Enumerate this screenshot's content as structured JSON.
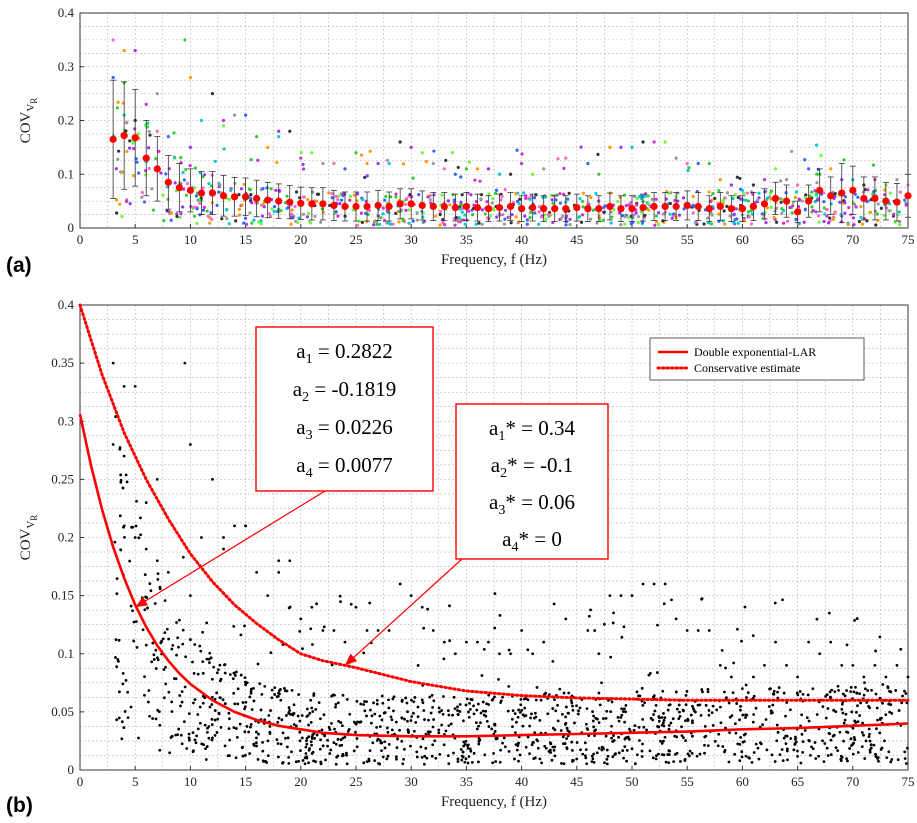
{
  "chart_data": [
    {
      "panel": "(a)",
      "type": "scatter",
      "xlabel": "Frequency, f (Hz)",
      "ylabel_main": "COV",
      "ylabel_sub": "V",
      "ylabel_subsub": "R",
      "xlim": [
        0,
        75
      ],
      "ylim": [
        0,
        0.4
      ],
      "xticks": [
        0,
        5,
        10,
        15,
        20,
        25,
        30,
        35,
        40,
        45,
        50,
        55,
        60,
        65,
        70,
        75
      ],
      "yticks": [
        0,
        0.1,
        0.2,
        0.3,
        0.4
      ],
      "grid": true,
      "mean_series": {
        "color": "#ff0000",
        "x": [
          3,
          4,
          5,
          6,
          7,
          8,
          9,
          10,
          11,
          12,
          13,
          14,
          15,
          16,
          17,
          18,
          19,
          20,
          21,
          22,
          23,
          24,
          25,
          26,
          27,
          28,
          29,
          30,
          31,
          32,
          33,
          34,
          35,
          36,
          37,
          38,
          39,
          40,
          41,
          42,
          43,
          44,
          45,
          46,
          47,
          48,
          49,
          50,
          51,
          52,
          53,
          54,
          55,
          56,
          57,
          58,
          59,
          60,
          61,
          62,
          63,
          64,
          65,
          66,
          67,
          68,
          69,
          70,
          71,
          72,
          73,
          74,
          75
        ],
        "y": [
          0.165,
          0.172,
          0.168,
          0.13,
          0.11,
          0.085,
          0.075,
          0.07,
          0.065,
          0.065,
          0.06,
          0.058,
          0.058,
          0.055,
          0.052,
          0.05,
          0.048,
          0.046,
          0.045,
          0.045,
          0.042,
          0.04,
          0.04,
          0.04,
          0.042,
          0.04,
          0.045,
          0.045,
          0.042,
          0.04,
          0.04,
          0.038,
          0.04,
          0.038,
          0.036,
          0.038,
          0.04,
          0.036,
          0.038,
          0.036,
          0.036,
          0.036,
          0.038,
          0.036,
          0.036,
          0.04,
          0.036,
          0.036,
          0.038,
          0.04,
          0.04,
          0.04,
          0.042,
          0.04,
          0.036,
          0.04,
          0.036,
          0.036,
          0.04,
          0.045,
          0.055,
          0.05,
          0.03,
          0.05,
          0.07,
          0.06,
          0.065,
          0.07,
          0.055,
          0.055,
          0.05,
          0.048,
          0.06
        ],
        "err": [
          0.11,
          0.1,
          0.09,
          0.07,
          0.06,
          0.05,
          0.045,
          0.04,
          0.04,
          0.04,
          0.038,
          0.036,
          0.035,
          0.034,
          0.033,
          0.032,
          0.031,
          0.03,
          0.03,
          0.03,
          0.028,
          0.027,
          0.027,
          0.027,
          0.028,
          0.027,
          0.028,
          0.028,
          0.027,
          0.026,
          0.026,
          0.025,
          0.026,
          0.025,
          0.024,
          0.025,
          0.026,
          0.024,
          0.025,
          0.024,
          0.024,
          0.024,
          0.025,
          0.024,
          0.024,
          0.025,
          0.024,
          0.024,
          0.025,
          0.026,
          0.026,
          0.026,
          0.027,
          0.026,
          0.024,
          0.026,
          0.024,
          0.024,
          0.026,
          0.028,
          0.03,
          0.03,
          0.02,
          0.03,
          0.04,
          0.035,
          0.055,
          0.045,
          0.04,
          0.04,
          0.035,
          0.035,
          0.04
        ]
      },
      "scatter_colors": [
        "#ff66cc",
        "#3366ff",
        "#33cc33",
        "#ff9900",
        "#9933ff",
        "#00cccc",
        "#333333",
        "#cc33cc",
        "#66ff33",
        "#999999"
      ],
      "scatter_points": [
        [
          3,
          0.35
        ],
        [
          3,
          0.28
        ],
        [
          4,
          0.27
        ],
        [
          4,
          0.33
        ],
        [
          5,
          0.33
        ],
        [
          4,
          0.21
        ],
        [
          5,
          0.2
        ],
        [
          6,
          0.23
        ],
        [
          6,
          0.19
        ],
        [
          7,
          0.25
        ],
        [
          7,
          0.18
        ],
        [
          8,
          0.17
        ],
        [
          9.5,
          0.35
        ],
        [
          10,
          0.28
        ],
        [
          10,
          0.15
        ],
        [
          11,
          0.2
        ],
        [
          12,
          0.25
        ],
        [
          13,
          0.2
        ],
        [
          13,
          0.19
        ],
        [
          14,
          0.21
        ],
        [
          15,
          0.21
        ],
        [
          15,
          0.21
        ],
        [
          16,
          0.17
        ],
        [
          17,
          0.15
        ],
        [
          18,
          0.18
        ],
        [
          18,
          0.17
        ],
        [
          19,
          0.18
        ],
        [
          20,
          0.13
        ],
        [
          21,
          0.14
        ],
        [
          22,
          0.12
        ],
        [
          23,
          0.12
        ],
        [
          24,
          0.11
        ],
        [
          25,
          0.14
        ],
        [
          26,
          0.12
        ],
        [
          27,
          0.12
        ],
        [
          28,
          0.12
        ],
        [
          29,
          0.16
        ],
        [
          30,
          0.15
        ],
        [
          31,
          0.14
        ],
        [
          32,
          0.12
        ],
        [
          33,
          0.11
        ],
        [
          34,
          0.1
        ],
        [
          35,
          0.11
        ],
        [
          36,
          0.11
        ],
        [
          37,
          0.11
        ],
        [
          38,
          0.1
        ],
        [
          39,
          0.1
        ],
        [
          40,
          0.12
        ],
        [
          41,
          0.1
        ],
        [
          42,
          0.11
        ],
        [
          44,
          0.13
        ],
        [
          46,
          0.12
        ],
        [
          47,
          0.1
        ],
        [
          48,
          0.15
        ],
        [
          49,
          0.15
        ],
        [
          50,
          0.15
        ],
        [
          51,
          0.16
        ],
        [
          52,
          0.16
        ],
        [
          53,
          0.16
        ],
        [
          54,
          0.13
        ],
        [
          55,
          0.12
        ],
        [
          56,
          0.12
        ],
        [
          57,
          0.12
        ],
        [
          58,
          0.09
        ],
        [
          59,
          0.08
        ],
        [
          60,
          0.07
        ],
        [
          61,
          0.08
        ],
        [
          62,
          0.09
        ],
        [
          63,
          0.11
        ],
        [
          64,
          0.09
        ],
        [
          65,
          0.08
        ],
        [
          66,
          0.11
        ],
        [
          67,
          0.1
        ],
        [
          68,
          0.11
        ],
        [
          69,
          0.09
        ],
        [
          70,
          0.09
        ],
        [
          71,
          0.08
        ],
        [
          72,
          0.09
        ],
        [
          73,
          0.08
        ],
        [
          74,
          0.09
        ],
        [
          75,
          0.08
        ]
      ]
    },
    {
      "panel": "(b)",
      "type": "scatter",
      "xlabel": "Frequency, f (Hz)",
      "ylabel_main": "COV",
      "ylabel_sub": "V",
      "ylabel_subsub": "R",
      "xlim": [
        0,
        75
      ],
      "ylim": [
        0,
        0.4
      ],
      "xticks": [
        0,
        5,
        10,
        15,
        20,
        25,
        30,
        35,
        40,
        45,
        50,
        55,
        60,
        65,
        70,
        75
      ],
      "yticks": [
        0,
        0.05,
        0.1,
        0.15,
        0.2,
        0.25,
        0.3,
        0.35,
        0.4
      ],
      "grid": true,
      "series": [
        {
          "name": "Double exponential-LAR",
          "style": "solid",
          "color": "#ff0000",
          "x": [
            0,
            1,
            2,
            3,
            4,
            5,
            6,
            7,
            8,
            9,
            10,
            12,
            14,
            16,
            18,
            20,
            22,
            25,
            30,
            35,
            40,
            45,
            50,
            55,
            60,
            65,
            70,
            75
          ],
          "y": [
            0.306,
            0.262,
            0.224,
            0.192,
            0.165,
            0.142,
            0.123,
            0.107,
            0.094,
            0.083,
            0.074,
            0.06,
            0.05,
            0.043,
            0.038,
            0.035,
            0.032,
            0.03,
            0.029,
            0.029,
            0.03,
            0.031,
            0.032,
            0.033,
            0.035,
            0.036,
            0.038,
            0.04
          ]
        },
        {
          "name": "Conservative estimate",
          "style": "dotted",
          "color": "#ff0000",
          "x": [
            0,
            2,
            4,
            6,
            8,
            10,
            12,
            14,
            16,
            18,
            20,
            22,
            25,
            30,
            35,
            40,
            45,
            50,
            55,
            60,
            65,
            70,
            75
          ],
          "y": [
            0.4,
            0.34,
            0.29,
            0.25,
            0.216,
            0.186,
            0.162,
            0.142,
            0.126,
            0.112,
            0.1,
            0.094,
            0.088,
            0.076,
            0.068,
            0.064,
            0.062,
            0.061,
            0.06,
            0.06,
            0.06,
            0.06,
            0.06
          ]
        }
      ],
      "annotations": [
        {
          "lines": [
            {
              "base": "a",
              "sub": "1",
              "rest": " = 0.2822"
            },
            {
              "base": "a",
              "sub": "2",
              "rest": " = -0.1819"
            },
            {
              "base": "a",
              "sub": "3",
              "rest": " = 0.0226"
            },
            {
              "base": "a",
              "sub": "4",
              "rest": " = 0.0077"
            }
          ],
          "arrow_to": [
            5,
            0.14
          ]
        },
        {
          "lines": [
            {
              "base": "a",
              "sub": "1",
              "rest": "* = 0.34"
            },
            {
              "base": "a",
              "sub": "2",
              "rest": "* = -0.1"
            },
            {
              "base": "a",
              "sub": "3",
              "rest": "* = 0.06"
            },
            {
              "base": "a",
              "sub": "4",
              "rest": "* = 0"
            }
          ],
          "arrow_to": [
            24,
            0.09
          ]
        }
      ]
    }
  ]
}
